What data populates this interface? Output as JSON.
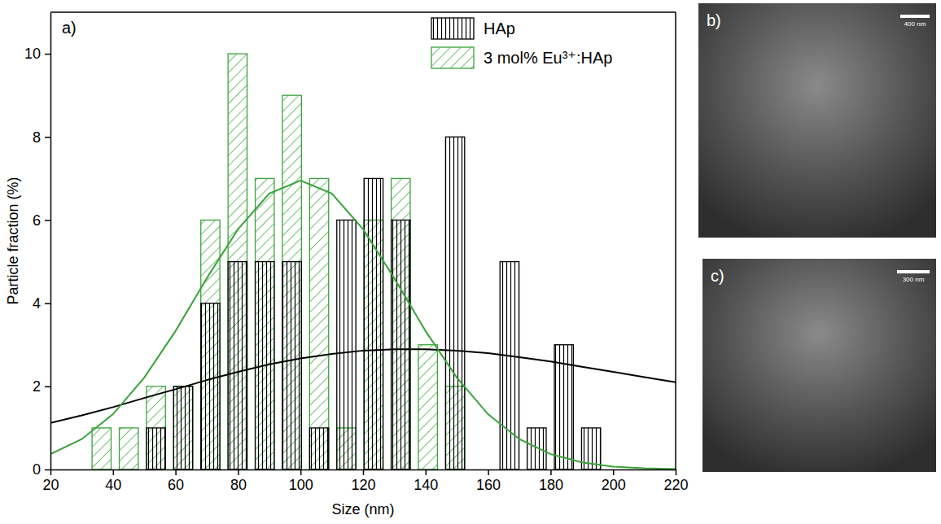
{
  "chart_data": {
    "type": "histogram",
    "x_label": "Size (nm)",
    "y_label": "Particle fraction (%)",
    "annotation": "a)",
    "xlim": [
      20,
      220
    ],
    "xticks": [
      20,
      40,
      60,
      80,
      100,
      120,
      140,
      160,
      180,
      200,
      220
    ],
    "ylim": [
      0,
      11
    ],
    "yticks": [
      0,
      2,
      4,
      6,
      8,
      10
    ],
    "grid": false,
    "legend": "upper right",
    "bins": [
      32,
      40.7,
      49.4,
      58.1,
      66.8,
      75.5,
      84.2,
      92.9,
      101.6,
      110.3,
      119,
      127.7,
      136.4,
      145.1,
      153.8,
      162.5,
      171.2,
      179.9,
      188.6,
      197.3,
      206
    ],
    "series": [
      {
        "name": "HAp",
        "color": "#000000",
        "values": [
          0,
          0,
          1,
          2,
          4,
          5,
          5,
          5,
          1,
          6,
          7,
          6,
          0,
          8,
          0,
          5,
          1,
          3,
          1,
          0
        ]
      },
      {
        "name": "3 mol% Eu³⁺:HAp",
        "color": "#3aa33a",
        "values": [
          1,
          1,
          2,
          2,
          6,
          10,
          7,
          9,
          7,
          1,
          6,
          7,
          3,
          2,
          0,
          0,
          0,
          0,
          0,
          0
        ]
      }
    ],
    "curves": [
      {
        "type": "line",
        "color": "#000000",
        "x": [
          20,
          30,
          40,
          50,
          60,
          70,
          80,
          90,
          100,
          110,
          120,
          130,
          140,
          150,
          160,
          170,
          180,
          190,
          200,
          210,
          220
        ],
        "values": [
          1.12,
          1.3,
          1.5,
          1.72,
          1.93,
          2.15,
          2.35,
          2.53,
          2.67,
          2.78,
          2.86,
          2.89,
          2.89,
          2.86,
          2.8,
          2.7,
          2.6,
          2.47,
          2.35,
          2.22,
          2.1
        ]
      },
      {
        "type": "line",
        "color": "#3aa33a",
        "x": [
          20,
          30,
          40,
          50,
          60,
          70,
          80,
          90,
          100,
          110,
          120,
          130,
          140,
          150,
          160,
          170,
          180,
          190,
          200,
          210,
          220
        ],
        "values": [
          0.37,
          0.73,
          1.33,
          2.21,
          3.33,
          4.6,
          5.78,
          6.64,
          6.95,
          6.64,
          5.78,
          4.6,
          3.33,
          2.21,
          1.33,
          0.73,
          0.37,
          0.17,
          0.07,
          0.03,
          0.01
        ]
      }
    ]
  },
  "panels": [
    {
      "label": "b)",
      "scale_bar": "400 nm"
    },
    {
      "label": "c)",
      "scale_bar": "300 nm"
    }
  ]
}
